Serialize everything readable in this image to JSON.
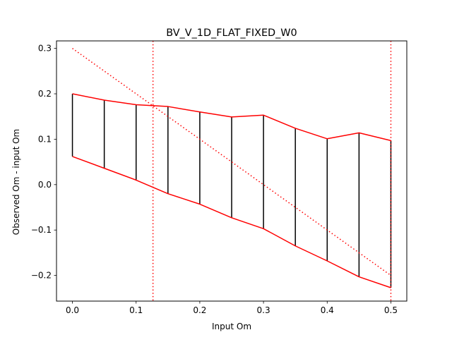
{
  "chart_data": {
    "type": "line",
    "title": "BV_V_1D_FLAT_FIXED_W0",
    "xlabel": "Input Om",
    "ylabel": "Observed Om - input Om",
    "xlim": [
      -0.025,
      0.525
    ],
    "ylim": [
      -0.2565,
      0.3165
    ],
    "grid": false,
    "x_ticks": [
      "0.0",
      "0.1",
      "0.2",
      "0.3",
      "0.4",
      "0.5"
    ],
    "x_tick_values": [
      0.0,
      0.1,
      0.2,
      0.3,
      0.4,
      0.5
    ],
    "y_ticks": [
      "−0.2",
      "−0.1",
      "0.0",
      "0.1",
      "0.2",
      "0.3"
    ],
    "y_tick_values": [
      -0.2,
      -0.1,
      0.0,
      0.1,
      0.2,
      0.3
    ],
    "x": [
      0.0,
      0.05,
      0.1,
      0.15,
      0.2,
      0.25,
      0.3,
      0.35,
      0.4,
      0.45,
      0.5
    ],
    "series": [
      {
        "role": "upper-bound",
        "color": "#ff0000",
        "style": "solid",
        "values": [
          0.2,
          0.186,
          0.176,
          0.172,
          0.16,
          0.149,
          0.153,
          0.124,
          0.101,
          0.114,
          0.097
        ]
      },
      {
        "role": "lower-bound",
        "color": "#ff0000",
        "style": "solid",
        "values": [
          0.062,
          0.036,
          0.01,
          -0.02,
          -0.043,
          -0.073,
          -0.097,
          -0.135,
          -0.168,
          -0.203,
          -0.227
        ]
      },
      {
        "role": "reference-diagonal",
        "color": "#ff0000",
        "style": "dotted",
        "x": [
          0.0,
          0.5
        ],
        "values": [
          0.3,
          -0.2
        ]
      }
    ],
    "range_bars": {
      "color": "#000000",
      "note": "vertical bars spanning lower-bound to upper-bound at each x"
    },
    "vertical_lines": [
      {
        "x": 0.1265,
        "color": "#ff0000",
        "style": "dotted"
      },
      {
        "x": 0.5,
        "color": "#ff0000",
        "style": "dotted"
      }
    ]
  }
}
